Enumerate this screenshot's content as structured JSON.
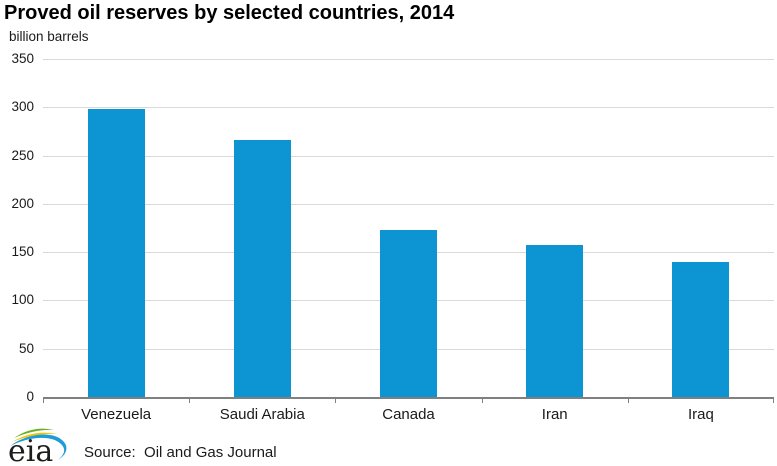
{
  "header": {
    "title": "Proved oil reserves by selected countries, 2014",
    "units_label": "billion barrels"
  },
  "chart_data": {
    "type": "bar",
    "title": "Proved oil reserves by selected countries, 2014",
    "ylabel": "billion barrels",
    "xlabel": "",
    "categories": [
      "Venezuela",
      "Saudi Arabia",
      "Canada",
      "Iran",
      "Iraq"
    ],
    "values": [
      298,
      266,
      173,
      157,
      140
    ],
    "ylim": [
      0,
      350
    ],
    "yticks": [
      0,
      50,
      100,
      150,
      200,
      250,
      300,
      350
    ],
    "grid": true,
    "legend": false,
    "bar_color": "#0d94d3",
    "gridline_color": "#d9d9d9",
    "axis_color": "#808080"
  },
  "footer": {
    "logo_text": "eia",
    "source_label": "Source:  Oil and Gas Journal",
    "logo_colors": {
      "green": "#6ab023",
      "yellow": "#f2c500",
      "blue": "#1c9dd9",
      "text": "#1d1d1b"
    }
  }
}
